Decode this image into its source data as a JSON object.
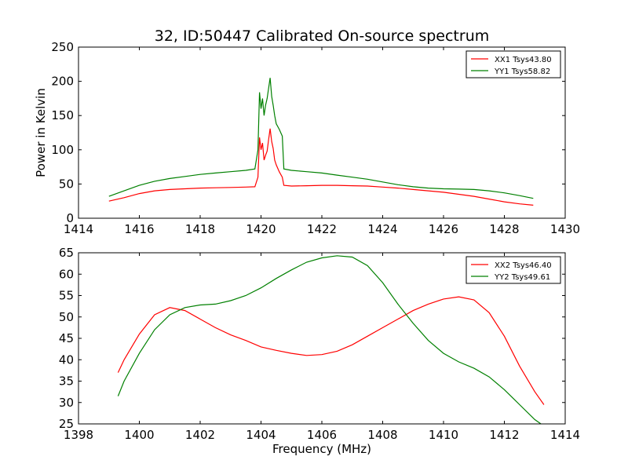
{
  "figure": {
    "title": "32, ID:50447 Calibrated On-source spectrum"
  },
  "chart_data": [
    {
      "type": "line",
      "title": "32, ID:50447 Calibrated On-source spectrum",
      "xlabel": "",
      "ylabel": "Power in Kelvin",
      "xlim": [
        1414,
        1430
      ],
      "ylim": [
        0,
        250
      ],
      "xticks": [
        1414,
        1416,
        1418,
        1420,
        1422,
        1424,
        1426,
        1428,
        1430
      ],
      "yticks": [
        0,
        50,
        100,
        150,
        200,
        250
      ],
      "legend_position": "top-right",
      "series": [
        {
          "name": "XX1 Tsys43.80",
          "color": "#ff0000",
          "x": [
            1415.0,
            1415.5,
            1416.0,
            1416.5,
            1417.0,
            1417.5,
            1418.0,
            1418.5,
            1419.0,
            1419.5,
            1419.8,
            1419.9,
            1419.95,
            1420.0,
            1420.05,
            1420.1,
            1420.15,
            1420.2,
            1420.25,
            1420.3,
            1420.35,
            1420.4,
            1420.45,
            1420.5,
            1420.6,
            1420.7,
            1420.75,
            1421.0,
            1421.5,
            1422.0,
            1422.5,
            1423.0,
            1423.5,
            1424.0,
            1424.5,
            1425.0,
            1425.5,
            1426.0,
            1426.5,
            1427.0,
            1427.5,
            1428.0,
            1428.5,
            1428.95
          ],
          "y": [
            25,
            30,
            36,
            40,
            42,
            43,
            44,
            44.5,
            45,
            45.5,
            46,
            60,
            118,
            100,
            110,
            85,
            92,
            98,
            115,
            131,
            112,
            102,
            85,
            78,
            68,
            60,
            48,
            47,
            47.5,
            48,
            48,
            47.5,
            47,
            45.5,
            44,
            42,
            40,
            38,
            35,
            32,
            28,
            24,
            21,
            19
          ]
        },
        {
          "name": "YY1 Tsys58.82",
          "color": "#008000",
          "x": [
            1415.0,
            1415.5,
            1416.0,
            1416.5,
            1417.0,
            1417.5,
            1418.0,
            1418.5,
            1419.0,
            1419.5,
            1419.8,
            1419.9,
            1419.95,
            1420.0,
            1420.05,
            1420.1,
            1420.15,
            1420.2,
            1420.25,
            1420.3,
            1420.35,
            1420.4,
            1420.45,
            1420.5,
            1420.6,
            1420.7,
            1420.75,
            1421.0,
            1421.5,
            1422.0,
            1422.5,
            1423.0,
            1423.5,
            1424.0,
            1424.5,
            1425.0,
            1425.5,
            1426.0,
            1426.5,
            1427.0,
            1427.5,
            1428.0,
            1428.5,
            1428.95
          ],
          "y": [
            32,
            40,
            48,
            54,
            58,
            61,
            64,
            66,
            68,
            70,
            72,
            100,
            184,
            160,
            175,
            150,
            165,
            175,
            190,
            205,
            178,
            165,
            150,
            138,
            130,
            120,
            72,
            70,
            68,
            66,
            63,
            60,
            57,
            53,
            49,
            46,
            44,
            43,
            42.5,
            42,
            40,
            37,
            33,
            29
          ]
        }
      ]
    },
    {
      "type": "line",
      "title": "",
      "xlabel": "Frequency (MHz)",
      "ylabel": "",
      "xlim": [
        1398,
        1414
      ],
      "ylim": [
        25,
        65
      ],
      "xticks": [
        1398,
        1400,
        1402,
        1404,
        1406,
        1408,
        1410,
        1412,
        1414
      ],
      "yticks": [
        25,
        30,
        35,
        40,
        45,
        50,
        55,
        60,
        65
      ],
      "legend_position": "top-right",
      "series": [
        {
          "name": "XX2 Tsys46.40",
          "color": "#ff0000",
          "x": [
            1399.3,
            1399.5,
            1400.0,
            1400.5,
            1401.0,
            1401.5,
            1402.0,
            1402.5,
            1403.0,
            1403.5,
            1404.0,
            1404.5,
            1405.0,
            1405.5,
            1406.0,
            1406.5,
            1407.0,
            1407.5,
            1408.0,
            1408.5,
            1409.0,
            1409.5,
            1410.0,
            1410.5,
            1411.0,
            1411.5,
            1412.0,
            1412.5,
            1413.0,
            1413.3
          ],
          "y": [
            37,
            40,
            46,
            50.5,
            52.2,
            51.5,
            49.5,
            47.5,
            45.8,
            44.5,
            43.0,
            42.2,
            41.5,
            41.0,
            41.2,
            42.0,
            43.5,
            45.5,
            47.5,
            49.5,
            51.5,
            53.0,
            54.2,
            54.7,
            54.0,
            51.0,
            45.5,
            38.5,
            32.5,
            29.5
          ]
        },
        {
          "name": "YY2 Tsys49.61",
          "color": "#008000",
          "x": [
            1399.3,
            1399.5,
            1400.0,
            1400.5,
            1401.0,
            1401.5,
            1402.0,
            1402.5,
            1403.0,
            1403.5,
            1404.0,
            1404.5,
            1405.0,
            1405.5,
            1406.0,
            1406.5,
            1407.0,
            1407.5,
            1408.0,
            1408.5,
            1409.0,
            1409.5,
            1410.0,
            1410.5,
            1411.0,
            1411.5,
            1412.0,
            1412.5,
            1413.0,
            1413.3
          ],
          "y": [
            31.5,
            35,
            41.5,
            47,
            50.5,
            52.2,
            52.8,
            53.0,
            53.8,
            55.0,
            56.8,
            59.0,
            61.0,
            62.8,
            63.8,
            64.3,
            64.0,
            62.0,
            58.0,
            53.0,
            48.5,
            44.5,
            41.5,
            39.5,
            38.0,
            36.0,
            33.0,
            29.5,
            26.0,
            24.5
          ]
        }
      ]
    }
  ]
}
